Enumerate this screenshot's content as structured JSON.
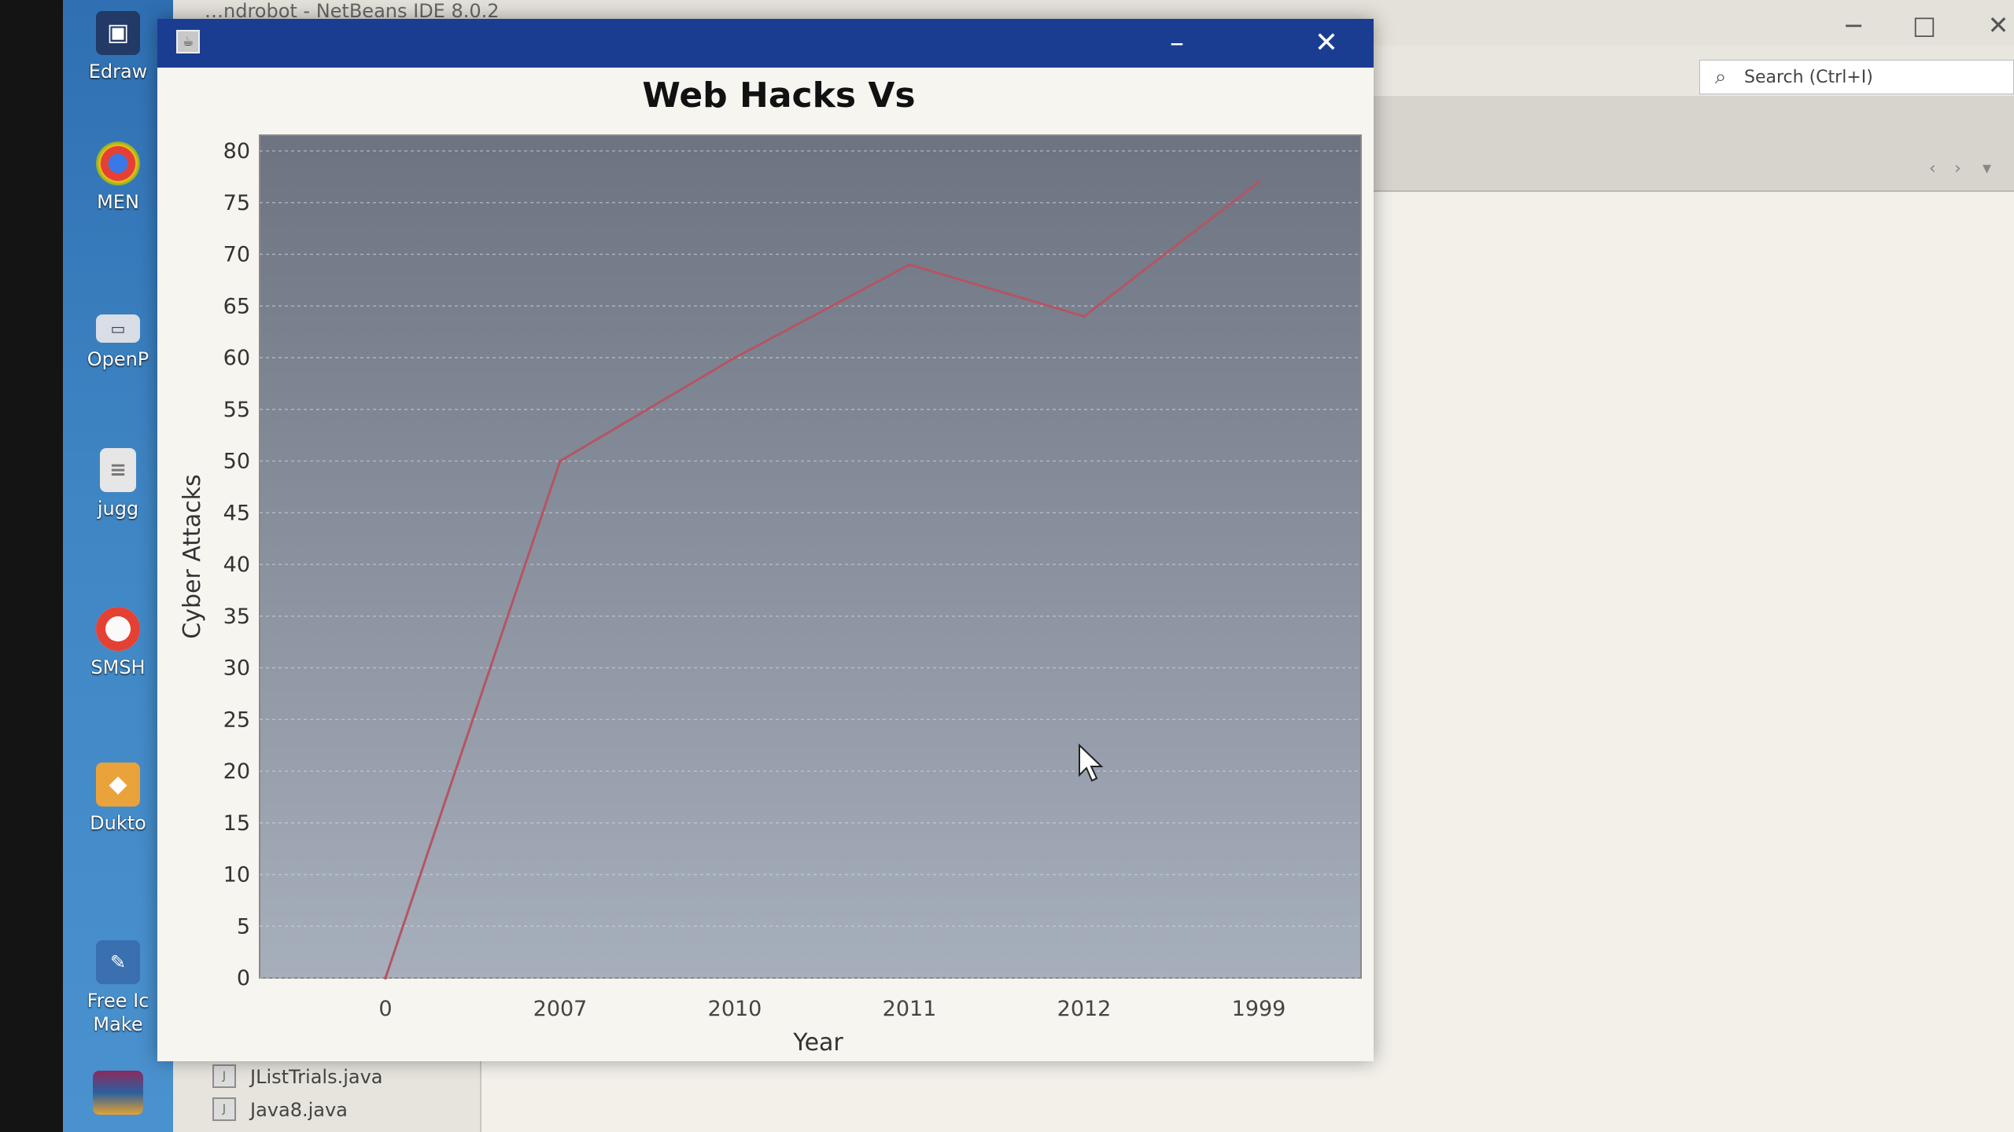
{
  "desktop": {
    "icons": [
      {
        "label": "Edraw",
        "icon": "edraw-icon"
      },
      {
        "label": "MEN",
        "icon": "chrome-icon"
      },
      {
        "label": "OpenP",
        "icon": "openproject-icon"
      },
      {
        "label": "jugg",
        "icon": "document-icon"
      },
      {
        "label": "SMSH",
        "icon": "chrome-shortcut-icon"
      },
      {
        "label": "Dukto",
        "icon": "dukto-icon"
      },
      {
        "label": "Free Ic\nMake",
        "icon": "free-icon-maker-icon"
      },
      {
        "label": "",
        "icon": "winrar-icon"
      }
    ]
  },
  "ide": {
    "title": "…ndrobot - NetBeans IDE 8.0.2",
    "search_placeholder": "Search (Ctrl+I)",
    "project_items": [
      "JListTrials.java",
      "Java8.java"
    ]
  },
  "window": {
    "title": ""
  },
  "chart_data": {
    "type": "line",
    "title": "Web Hacks Vs",
    "xlabel": "Year",
    "ylabel": "Cyber Attacks",
    "categories": [
      "0",
      "2007",
      "2010",
      "2011",
      "2012",
      "1999"
    ],
    "series": [
      {
        "values": [
          0,
          50,
          60,
          69,
          64,
          77
        ],
        "color": "#b45563"
      }
    ],
    "ylim": [
      0,
      80
    ],
    "yticks": [
      0,
      5,
      10,
      15,
      20,
      25,
      30,
      35,
      40,
      45,
      50,
      55,
      60,
      65,
      70,
      75,
      80
    ],
    "grid": true,
    "legend": "none",
    "plot_background": [
      "#6d7381",
      "#a6afbb"
    ]
  }
}
